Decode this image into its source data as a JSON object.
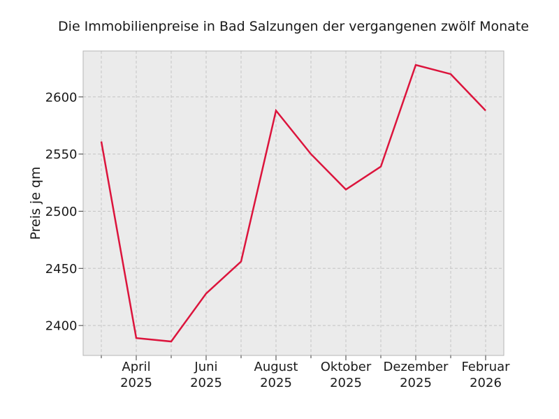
{
  "title": "Die Immobilienpreise in Bad Salzungen der vergangenen zwölf Monate",
  "ylabel": "Preis je qm",
  "colors": {
    "line": "#dc143c",
    "plot_bg": "#ebebeb",
    "grid": "#c4c4c4",
    "spine": "#b4b4b4",
    "tick": "#3a3a3a",
    "text": "#1a1a1a",
    "figure_bg": "#ffffff"
  },
  "chart_data": {
    "type": "line",
    "title": "Die Immobilienpreise in Bad Salzungen der vergangenen zwölf Monate",
    "xlabel": "",
    "ylabel": "Preis je qm",
    "x": [
      "März 2025",
      "April 2025",
      "Mai 2025",
      "Juni 2025",
      "Juli 2025",
      "August 2025",
      "September 2025",
      "Oktober 2025",
      "November 2025",
      "Dezember 2025",
      "Januar 2026",
      "Februar 2026"
    ],
    "values": [
      2561,
      2389,
      2386,
      2428,
      2456,
      2588,
      2550,
      2519,
      2539,
      2628,
      2620,
      2588
    ],
    "x_major_ticks": [
      {
        "index": 1,
        "line1": "April",
        "line2": "2025"
      },
      {
        "index": 3,
        "line1": "Juni",
        "line2": "2025"
      },
      {
        "index": 5,
        "line1": "August",
        "line2": "2025"
      },
      {
        "index": 7,
        "line1": "Oktober",
        "line2": "2025"
      },
      {
        "index": 9,
        "line1": "Dezember",
        "line2": "2025"
      },
      {
        "index": 11,
        "line1": "Februar",
        "line2": "2026"
      }
    ],
    "y_ticks": [
      2400,
      2450,
      2500,
      2550,
      2600
    ],
    "ylim": [
      2373.8,
      2640.2
    ],
    "grid": "dashed",
    "legend": "none"
  }
}
